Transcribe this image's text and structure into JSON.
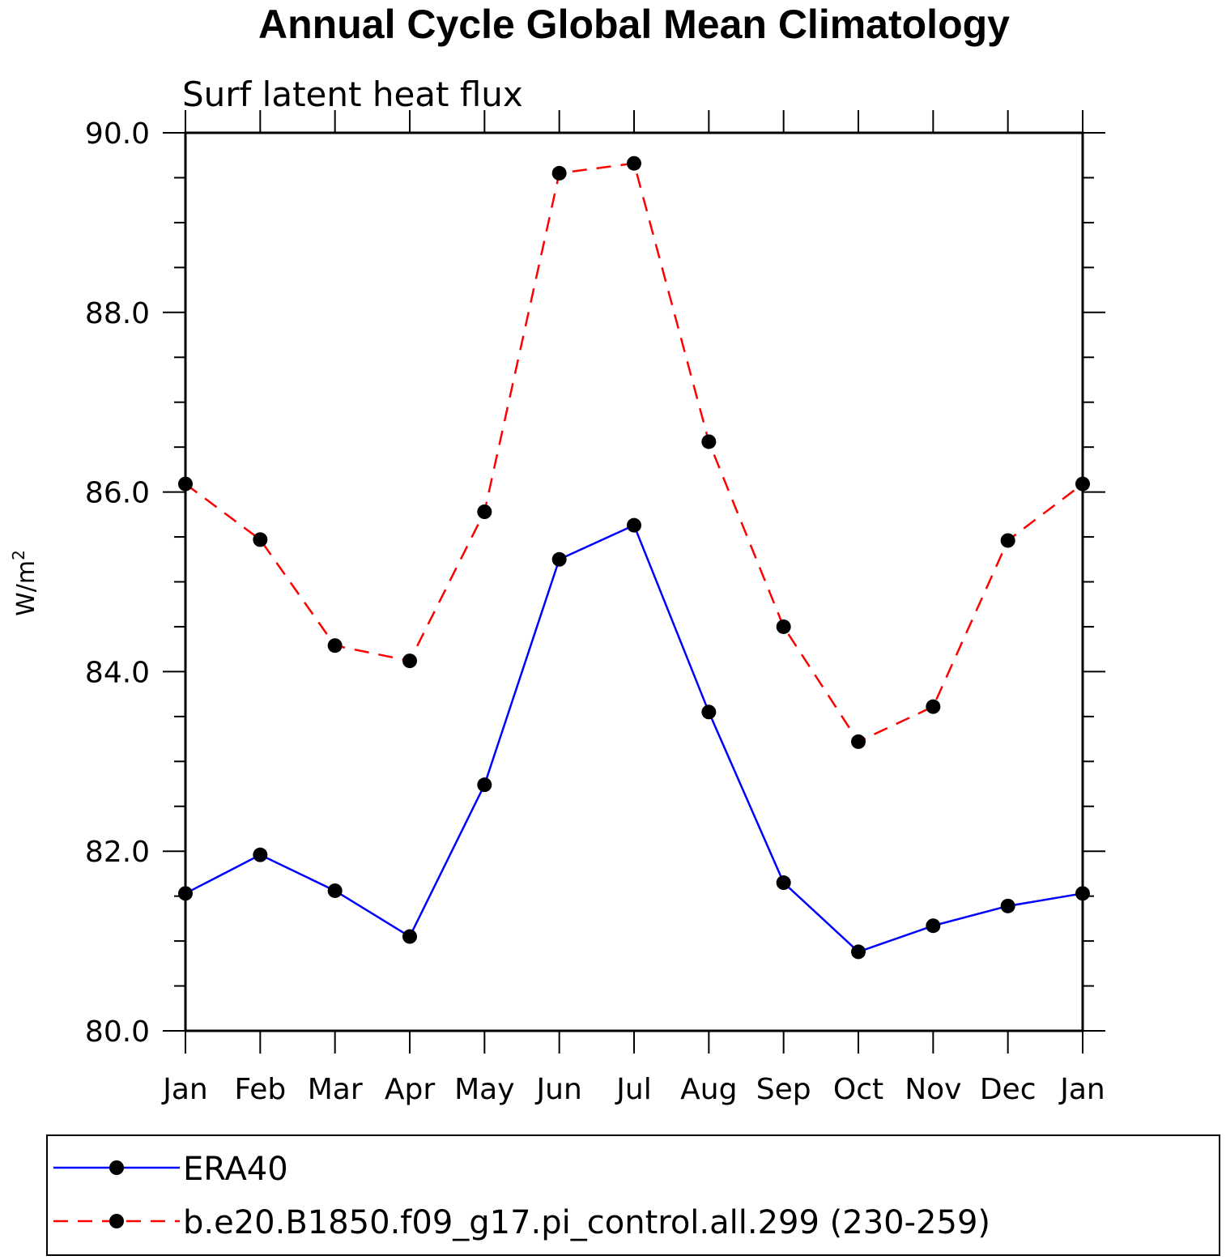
{
  "chart_data": {
    "type": "line",
    "title": "Annual Cycle Global Mean Climatology",
    "subtitle": "Surf latent heat flux",
    "ylabel": "W/m",
    "ylabel_superscript": "2",
    "xlabel": "",
    "categories": [
      "Jan",
      "Feb",
      "Mar",
      "Apr",
      "May",
      "Jun",
      "Jul",
      "Aug",
      "Sep",
      "Oct",
      "Nov",
      "Dec",
      "Jan"
    ],
    "ylim": [
      80.0,
      90.0
    ],
    "yticks": [
      "80.0",
      "82.0",
      "84.0",
      "86.0",
      "88.0",
      "90.0"
    ],
    "grid": false,
    "legend_position": "bottom",
    "series": [
      {
        "name": "ERA40",
        "color": "#0000ff",
        "dash": "solid",
        "marker": "filled-circle",
        "values": [
          81.53,
          81.96,
          81.56,
          81.05,
          82.74,
          85.25,
          85.63,
          83.55,
          81.65,
          80.88,
          81.17,
          81.39,
          81.53
        ]
      },
      {
        "name": "b.e20.B1850.f09_g17.pi_control.all.299 (230-259)",
        "color": "#ff0000",
        "dash": "dashed",
        "marker": "filled-circle",
        "values": [
          86.09,
          85.47,
          84.29,
          84.12,
          85.78,
          89.55,
          89.66,
          86.56,
          84.5,
          83.22,
          83.61,
          85.46,
          86.09
        ]
      }
    ]
  }
}
